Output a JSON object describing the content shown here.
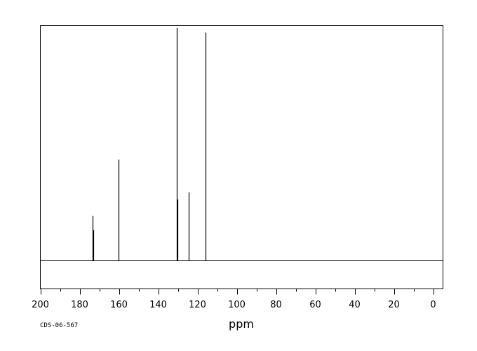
{
  "chart_data": {
    "type": "line",
    "title": "",
    "xlabel": "ppm",
    "ylabel": "",
    "xlim": [
      200,
      0
    ],
    "x_reversed": true,
    "ylim": [
      -0.12,
      1.0
    ],
    "x_ticks_major": [
      200,
      180,
      160,
      140,
      120,
      100,
      80,
      60,
      40,
      20,
      0
    ],
    "x_tick_labels": [
      "200",
      "180",
      "160",
      "140",
      "120",
      "100",
      "80",
      "60",
      "40",
      "20",
      "0"
    ],
    "x_ticks_minor_step": 10,
    "grid": false,
    "series": [
      {
        "peaks": [
          {
            "ppm": 173.3,
            "intensity": 0.19
          },
          {
            "ppm": 173.0,
            "intensity": 0.13
          },
          {
            "ppm": 160.2,
            "intensity": 0.43
          },
          {
            "ppm": 130.5,
            "intensity": 0.99
          },
          {
            "ppm": 130.1,
            "intensity": 0.26
          },
          {
            "ppm": 124.6,
            "intensity": 0.29
          },
          {
            "ppm": 115.9,
            "intensity": 0.97
          }
        ]
      }
    ],
    "annotations": [
      "CDS-06-567"
    ]
  },
  "colors": {
    "line": "#000000",
    "background": "#ffffff"
  }
}
